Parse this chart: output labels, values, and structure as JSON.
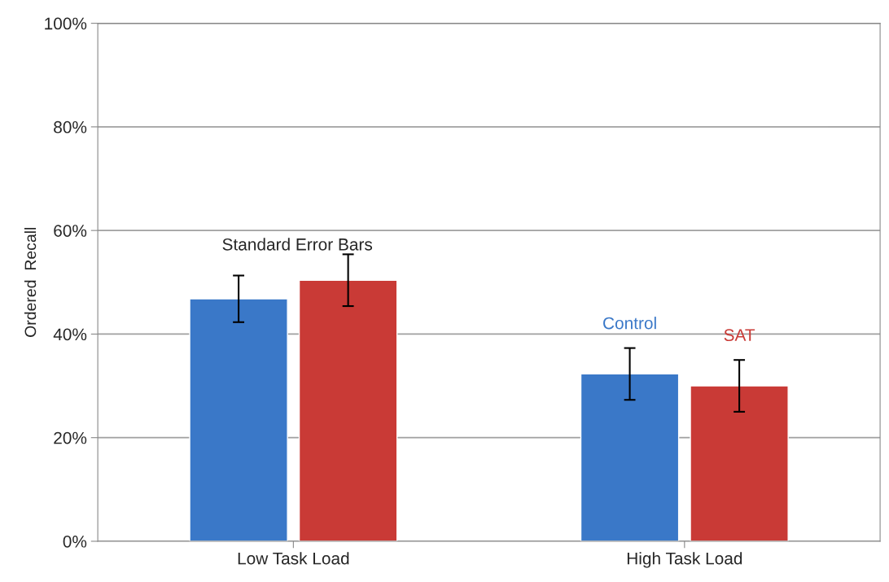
{
  "chart_data": {
    "type": "bar",
    "ylabel": "Ordered  Recall",
    "categories": [
      "Low Task Load",
      "High Task Load"
    ],
    "series": [
      {
        "name": "Control",
        "color": "#3a78c8",
        "values": [
          46.8,
          32.3
        ],
        "errors": [
          4.5,
          5
        ]
      },
      {
        "name": "SAT",
        "color": "#c93a36",
        "values": [
          50.4,
          30.0
        ],
        "errors": [
          5,
          5
        ]
      }
    ],
    "ylim": [
      0,
      100
    ],
    "yticks": [
      {
        "value": 0,
        "label": "0%"
      },
      {
        "value": 20,
        "label": "20%"
      },
      {
        "value": 40,
        "label": "40%"
      },
      {
        "value": 60,
        "label": "60%"
      },
      {
        "value": 80,
        "label": "80%"
      },
      {
        "value": 100,
        "label": "100%"
      }
    ],
    "grid": "y",
    "legend": false,
    "annotations": [
      "Standard Error Bars"
    ]
  }
}
